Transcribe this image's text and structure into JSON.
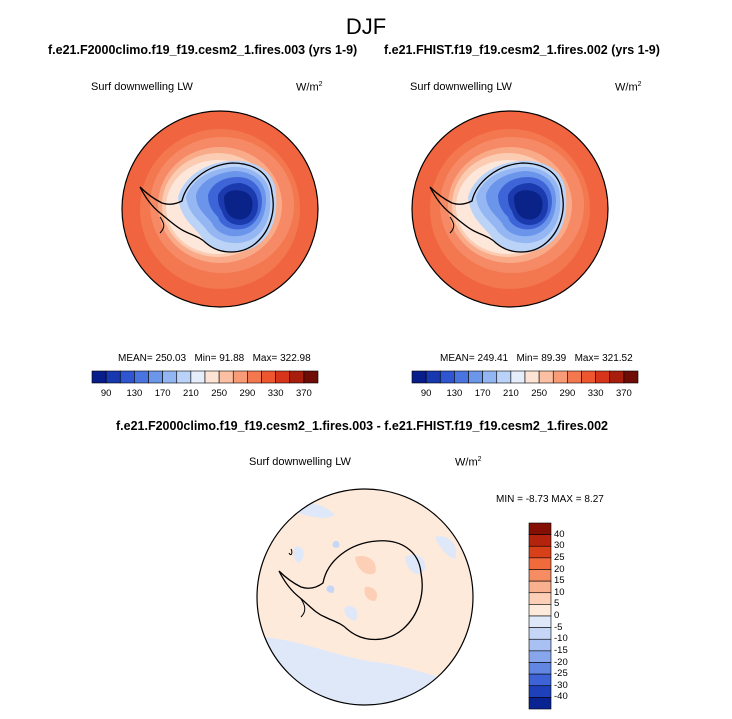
{
  "season": "DJF",
  "panels": [
    {
      "title": "f.e21.F2000climo.f19_f19.cesm2_1.fires.003 (yrs 1-9)",
      "variable": "Surf downwelling LW",
      "units_base": "W/m",
      "units_exp": "2",
      "stats": {
        "mean_label": "MEAN=",
        "mean": "250.03",
        "min_label": "Min=",
        "min": "91.88",
        "max_label": "Max=",
        "max": "322.98"
      }
    },
    {
      "title": "f.e21.FHIST.f19_f19.cesm2_1.fires.002 (yrs 1-9)",
      "variable": "Surf downwelling LW",
      "units_base": "W/m",
      "units_exp": "2",
      "stats": {
        "mean_label": "MEAN=",
        "mean": "249.41",
        "min_label": "Min=",
        "min": "89.39",
        "max_label": "Max=",
        "max": "321.52"
      }
    }
  ],
  "abs_colorbar": {
    "colors": [
      "#081d8c",
      "#1838b0",
      "#2f55d0",
      "#4a75e0",
      "#6b96ea",
      "#93b6f2",
      "#bad2f8",
      "#e6eefc",
      "#fde3d3",
      "#fbc0a3",
      "#f89c78",
      "#f4784f",
      "#ee562f",
      "#d8341a",
      "#a81e0c",
      "#6e0c05"
    ],
    "labels": [
      "90",
      "130",
      "170",
      "210",
      "250",
      "290",
      "330",
      "370"
    ]
  },
  "diff": {
    "title": "f.e21.F2000climo.f19_f19.cesm2_1.fires.003 - f.e21.FHIST.f19_f19.cesm2_1.fires.002",
    "variable": "Surf downwelling LW",
    "units_base": "W/m",
    "units_exp": "2",
    "range_text": "MIN = -8.73 MAX =  8.27",
    "colorbar": {
      "colors": [
        "#840f05",
        "#b4230d",
        "#d8401a",
        "#f06a3c",
        "#f68c62",
        "#f9b08e",
        "#fccfb6",
        "#fdeadb",
        "#dfe8f9",
        "#c6d6f7",
        "#a9c1f2",
        "#87a6ec",
        "#6287e3",
        "#3d63d6",
        "#1f40bb",
        "#0a2393"
      ],
      "labels": [
        "40",
        "30",
        "25",
        "20",
        "15",
        "10",
        "5",
        "0",
        "-5",
        "-10",
        "-15",
        "-20",
        "-25",
        "-30",
        "-40"
      ]
    }
  }
}
